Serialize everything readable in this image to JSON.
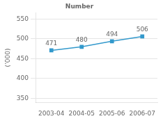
{
  "chart_data": {
    "type": "line",
    "title": "Number",
    "y_label": "(’000)",
    "categories": [
      "2003-04",
      "2004-05",
      "2005-06",
      "2006-07"
    ],
    "values": [
      471,
      480,
      494,
      506
    ],
    "color": "#3399cc",
    "marker": "square",
    "ylim": [
      340,
      565
    ],
    "yticks": [
      350,
      400,
      450,
      500,
      550
    ],
    "grid": true,
    "data_labels": true
  }
}
